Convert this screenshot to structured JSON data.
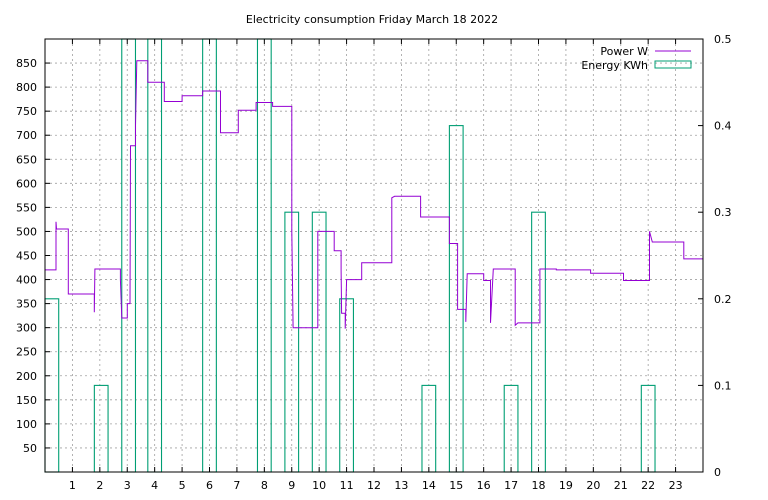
{
  "chart_data": {
    "type": "line",
    "title": "Electricity consumption Friday March 18 2022",
    "xlabel": "",
    "ylabel": "",
    "y2label": "",
    "xlim": [
      0,
      24
    ],
    "ylim": [
      0,
      900
    ],
    "y2lim": [
      0,
      0.5
    ],
    "x_ticks": [
      1,
      2,
      3,
      4,
      5,
      6,
      7,
      8,
      9,
      10,
      11,
      12,
      13,
      14,
      15,
      16,
      17,
      18,
      19,
      20,
      21,
      22,
      23
    ],
    "y_ticks": [
      50,
      100,
      150,
      200,
      250,
      300,
      350,
      400,
      450,
      500,
      550,
      600,
      650,
      700,
      750,
      800,
      850
    ],
    "y2_ticks": [
      "0",
      "0.1",
      "0.2",
      "0.3",
      "0.4",
      "0.5"
    ],
    "y2_tick_values": [
      0,
      0.1,
      0.2,
      0.3,
      0.4,
      0.5
    ],
    "grid": true,
    "legend_position": "top-right",
    "series": [
      {
        "name": "Power W",
        "type": "step-line",
        "color": "#9400d3",
        "axis": "left",
        "points": [
          [
            0,
            420
          ],
          [
            0.4,
            420
          ],
          [
            0.4,
            520
          ],
          [
            0.42,
            505
          ],
          [
            0.85,
            505
          ],
          [
            0.85,
            370
          ],
          [
            1.8,
            370
          ],
          [
            1.8,
            332
          ],
          [
            1.82,
            422
          ],
          [
            2.75,
            422
          ],
          [
            2.75,
            400
          ],
          [
            2.8,
            320
          ],
          [
            3.0,
            320
          ],
          [
            3.0,
            350
          ],
          [
            3.1,
            350
          ],
          [
            3.12,
            678
          ],
          [
            3.3,
            678
          ],
          [
            3.3,
            720
          ],
          [
            3.35,
            855
          ],
          [
            3.75,
            855
          ],
          [
            3.75,
            810
          ],
          [
            4.35,
            810
          ],
          [
            4.35,
            770
          ],
          [
            5.0,
            770
          ],
          [
            5.0,
            782
          ],
          [
            5.75,
            782
          ],
          [
            5.75,
            792
          ],
          [
            6.4,
            792
          ],
          [
            6.4,
            705
          ],
          [
            7.05,
            705
          ],
          [
            7.05,
            752
          ],
          [
            7.7,
            752
          ],
          [
            7.7,
            768
          ],
          [
            8.3,
            768
          ],
          [
            8.3,
            760
          ],
          [
            9.0,
            760
          ],
          [
            9.0,
            500
          ],
          [
            9.05,
            300
          ],
          [
            9.95,
            300
          ],
          [
            9.95,
            500
          ],
          [
            10.55,
            500
          ],
          [
            10.55,
            460
          ],
          [
            10.8,
            460
          ],
          [
            10.8,
            420
          ],
          [
            10.82,
            330
          ],
          [
            10.95,
            330
          ],
          [
            10.95,
            298
          ],
          [
            11.0,
            400
          ],
          [
            11.55,
            400
          ],
          [
            11.55,
            435
          ],
          [
            12.65,
            435
          ],
          [
            12.65,
            570
          ],
          [
            12.75,
            573
          ],
          [
            13.7,
            573
          ],
          [
            13.7,
            530
          ],
          [
            14.75,
            530
          ],
          [
            14.75,
            475
          ],
          [
            15.05,
            475
          ],
          [
            15.05,
            338
          ],
          [
            15.35,
            338
          ],
          [
            15.35,
            312
          ],
          [
            15.4,
            412
          ],
          [
            16.0,
            412
          ],
          [
            16.0,
            398
          ],
          [
            16.25,
            398
          ],
          [
            16.25,
            310
          ],
          [
            16.35,
            422
          ],
          [
            17.15,
            422
          ],
          [
            17.15,
            305
          ],
          [
            17.25,
            310
          ],
          [
            18.05,
            310
          ],
          [
            18.05,
            422
          ],
          [
            18.65,
            422
          ],
          [
            18.65,
            420
          ],
          [
            19.9,
            420
          ],
          [
            19.9,
            413
          ],
          [
            21.1,
            413
          ],
          [
            21.1,
            398
          ],
          [
            22.05,
            398
          ],
          [
            22.05,
            500
          ],
          [
            22.15,
            478
          ],
          [
            23.3,
            478
          ],
          [
            23.3,
            443
          ],
          [
            24,
            443
          ]
        ]
      },
      {
        "name": "Energy KWh",
        "type": "impulse-box",
        "color": "#009e73",
        "axis": "right",
        "bars": [
          [
            0,
            0.5,
            0.2
          ],
          [
            1.8,
            2.3,
            0.1
          ],
          [
            2.8,
            3.3,
            0.5
          ],
          [
            3.75,
            4.25,
            0.5
          ],
          [
            5.75,
            6.25,
            0.5
          ],
          [
            7.75,
            8.25,
            0.5
          ],
          [
            8.75,
            9.25,
            0.3
          ],
          [
            9.75,
            10.25,
            0.3
          ],
          [
            10.75,
            11.25,
            0.2
          ],
          [
            13.75,
            14.25,
            0.1
          ],
          [
            14.75,
            15.25,
            0.4
          ],
          [
            16.75,
            17.25,
            0.1
          ],
          [
            17.75,
            18.25,
            0.3
          ],
          [
            21.75,
            22.25,
            0.1
          ]
        ]
      }
    ]
  }
}
